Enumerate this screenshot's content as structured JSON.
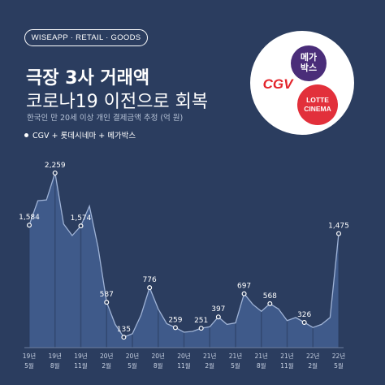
{
  "header": {
    "brand": "WISEAPP · RETAIL · GOODS",
    "title_line1": "극장 3사 거래액",
    "title_line2": "코로나19 이전으로 회복",
    "subtitle": "한국인 만 20세 이상 개인 결제금액 추정 (억 원)",
    "legend": "CGV + 롯데시네마 + 메가박스"
  },
  "logos": {
    "cgv": "CGV",
    "mega_line1": "메가",
    "mega_line2": "박스",
    "lotte_line1": "LOTTE",
    "lotte_line2": "CINEMA"
  },
  "colors": {
    "background": "#2b3d5f",
    "area_fill": "#3f5a8a",
    "line": "#9fb3d6",
    "text": "#ffffff"
  },
  "chart_data": {
    "type": "area",
    "title": "극장 3사 거래액",
    "series": [
      {
        "name": "CGV + 롯데시네마 + 메가박스",
        "x": [
          "19년 5월",
          "19년 6월",
          "19년 7월",
          "19년 8월",
          "19년 9월",
          "19년 10월",
          "19년 11월",
          "19년 12월",
          "20년 1월",
          "20년 2월",
          "20년 3월",
          "20년 4월",
          "20년 5월",
          "20년 6월",
          "20년 7월",
          "20년 8월",
          "20년 9월",
          "20년 10월",
          "20년 11월",
          "20년 12월",
          "21년 1월",
          "21년 2월",
          "21년 3월",
          "21년 4월",
          "21년 5월",
          "21년 6월",
          "21년 7월",
          "21년 8월",
          "21년 9월",
          "21년 10월",
          "21년 11월",
          "21년 12월",
          "22년 1월",
          "22년 2월",
          "22년 3월",
          "22년 4월",
          "22년 5월"
        ],
        "values": [
          1584,
          1900,
          1910,
          2259,
          1600,
          1450,
          1574,
          1830,
          1300,
          587,
          300,
          135,
          180,
          420,
          776,
          500,
          310,
          259,
          200,
          210,
          251,
          270,
          397,
          300,
          320,
          697,
          560,
          470,
          568,
          500,
          350,
          390,
          326,
          260,
          300,
          390,
          1475
        ]
      }
    ],
    "labeled_points": [
      {
        "index": 0,
        "value": "1,584"
      },
      {
        "index": 3,
        "value": "2,259"
      },
      {
        "index": 6,
        "value": "1,574"
      },
      {
        "index": 9,
        "value": "587"
      },
      {
        "index": 11,
        "value": "135"
      },
      {
        "index": 14,
        "value": "776"
      },
      {
        "index": 17,
        "value": "259"
      },
      {
        "index": 20,
        "value": "251"
      },
      {
        "index": 22,
        "value": "397"
      },
      {
        "index": 25,
        "value": "697"
      },
      {
        "index": 28,
        "value": "568"
      },
      {
        "index": 32,
        "value": "326"
      },
      {
        "index": 36,
        "value": "1,475"
      }
    ],
    "x_ticks": [
      {
        "index": 0,
        "year": "19년",
        "month": "5월"
      },
      {
        "index": 3,
        "year": "19년",
        "month": "8월"
      },
      {
        "index": 6,
        "year": "19년",
        "month": "11월"
      },
      {
        "index": 9,
        "year": "20년",
        "month": "2월"
      },
      {
        "index": 12,
        "year": "20년",
        "month": "5월"
      },
      {
        "index": 15,
        "year": "20년",
        "month": "8월"
      },
      {
        "index": 18,
        "year": "20년",
        "month": "11월"
      },
      {
        "index": 21,
        "year": "21년",
        "month": "2월"
      },
      {
        "index": 24,
        "year": "21년",
        "month": "5월"
      },
      {
        "index": 27,
        "year": "21년",
        "month": "8월"
      },
      {
        "index": 30,
        "year": "21년",
        "month": "11월"
      },
      {
        "index": 33,
        "year": "22년",
        "month": "2월"
      },
      {
        "index": 36,
        "year": "22년",
        "month": "5월"
      }
    ],
    "ylim": [
      0,
      2500
    ],
    "grid": false,
    "vertical_guides": true
  }
}
